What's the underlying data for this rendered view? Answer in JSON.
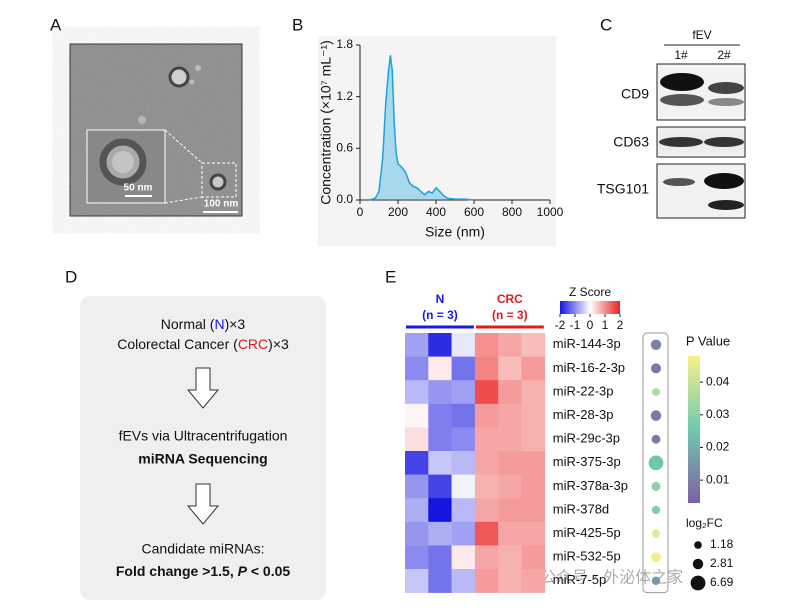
{
  "panel_labels": [
    "A",
    "B",
    "C",
    "D",
    "E"
  ],
  "panel_a": {
    "scale_inset": "50 nm",
    "scale_main": "100 nm"
  },
  "panel_c": {
    "group": "fEV",
    "lanes": [
      "1#",
      "2#"
    ],
    "proteins": [
      "CD9",
      "CD63",
      "TSG101"
    ]
  },
  "panel_d": {
    "line1": [
      "Normal (",
      "N",
      ")×3"
    ],
    "line2": [
      "Colorectal Cancer (",
      "CRC",
      ")×3"
    ],
    "step2": "fEVs via Ultracentrifugation",
    "step3": "miRNA Sequencing",
    "step4": "Candidate miRNAs:",
    "step5": [
      "Fold change >1.5, ",
      "P",
      " < 0.05"
    ]
  },
  "watermark": "公众号 · 外泌体之家",
  "chart_data": [
    {
      "type": "area",
      "xlabel": "Size (nm)",
      "ylabel": "Concentration (×10⁷ mL⁻¹)",
      "color": "#1ba3dc",
      "x": [
        50,
        80,
        100,
        120,
        135,
        150,
        160,
        170,
        180,
        190,
        200,
        220,
        240,
        260,
        280,
        300,
        320,
        340,
        360,
        380,
        400,
        420,
        440,
        460,
        500,
        550,
        600
      ],
      "values": [
        0,
        0.02,
        0.1,
        0.5,
        1.1,
        1.5,
        1.68,
        1.5,
        0.9,
        0.55,
        0.42,
        0.38,
        0.32,
        0.2,
        0.16,
        0.14,
        0.1,
        0.06,
        0.1,
        0.08,
        0.14,
        0.1,
        0.05,
        0.02,
        0.01,
        0.01,
        0
      ],
      "xlim": [
        0,
        1000
      ],
      "xticks": [
        0,
        200,
        400,
        600,
        800,
        1000
      ],
      "ylim": [
        0,
        1.8
      ],
      "yticks": [
        {
          "value": 0,
          "label": "0.0"
        },
        0.6,
        1.2,
        1.8
      ]
    },
    {
      "type": "heatmap",
      "groups": [
        {
          "name": "N",
          "n_label": "(n = 3)",
          "color": "#1a1ae6",
          "columns": 3
        },
        {
          "name": "CRC",
          "n_label": "(n = 3)",
          "color": "#e01b1b",
          "columns": 3
        }
      ],
      "categories": [
        "miR-144-3p",
        "miR-16-2-3p",
        "miR-22-3p",
        "miR-28-3p",
        "miR-29c-3p",
        "miR-375-3p",
        "miR-378a-3p",
        "miR-378d",
        "miR-425-5p",
        "miR-532-5p",
        "miR-7-5p"
      ],
      "values": [
        [
          -0.8,
          -1.8,
          -0.2,
          1.0,
          0.8,
          0.6
        ],
        [
          -1.0,
          0.2,
          -1.2,
          1.1,
          0.6,
          0.9
        ],
        [
          -0.6,
          -0.9,
          -0.8,
          1.6,
          0.9,
          0.7
        ],
        [
          0.1,
          -1.1,
          -1.2,
          0.9,
          0.8,
          0.7
        ],
        [
          0.3,
          -1.1,
          -1.0,
          0.8,
          0.8,
          0.7
        ],
        [
          -1.6,
          -0.5,
          -0.6,
          0.8,
          0.9,
          0.9
        ],
        [
          -0.9,
          -1.6,
          -0.1,
          0.7,
          0.8,
          0.9
        ],
        [
          -0.7,
          -2.0,
          -0.6,
          0.8,
          0.9,
          0.9
        ],
        [
          -0.9,
          -0.7,
          -0.8,
          1.5,
          0.8,
          0.8
        ],
        [
          -1.0,
          -1.2,
          0.2,
          0.8,
          0.7,
          0.9
        ],
        [
          -0.5,
          -1.2,
          -0.6,
          0.9,
          0.7,
          0.8
        ]
      ],
      "colorbar_title": "Z Score",
      "zlim": [
        -2,
        2
      ],
      "zticks": [
        -2,
        -1,
        0,
        1,
        2
      ],
      "pvalue": [
        0.01,
        0.008,
        0.035,
        0.008,
        0.009,
        0.025,
        0.03,
        0.028,
        0.045,
        0.047,
        0.015
      ],
      "log2fc": [
        2.8,
        2.5,
        1.2,
        2.9,
        1.8,
        6.5,
        1.9,
        1.5,
        1.4,
        2.4,
        1.6
      ],
      "p_title": "P Value",
      "plim": [
        0.003,
        0.048
      ],
      "pticks": [
        0.01,
        0.02,
        0.03,
        0.04
      ],
      "size_title": "log₂FC",
      "size_ticks": [
        1.18,
        2.81,
        6.69
      ]
    }
  ]
}
